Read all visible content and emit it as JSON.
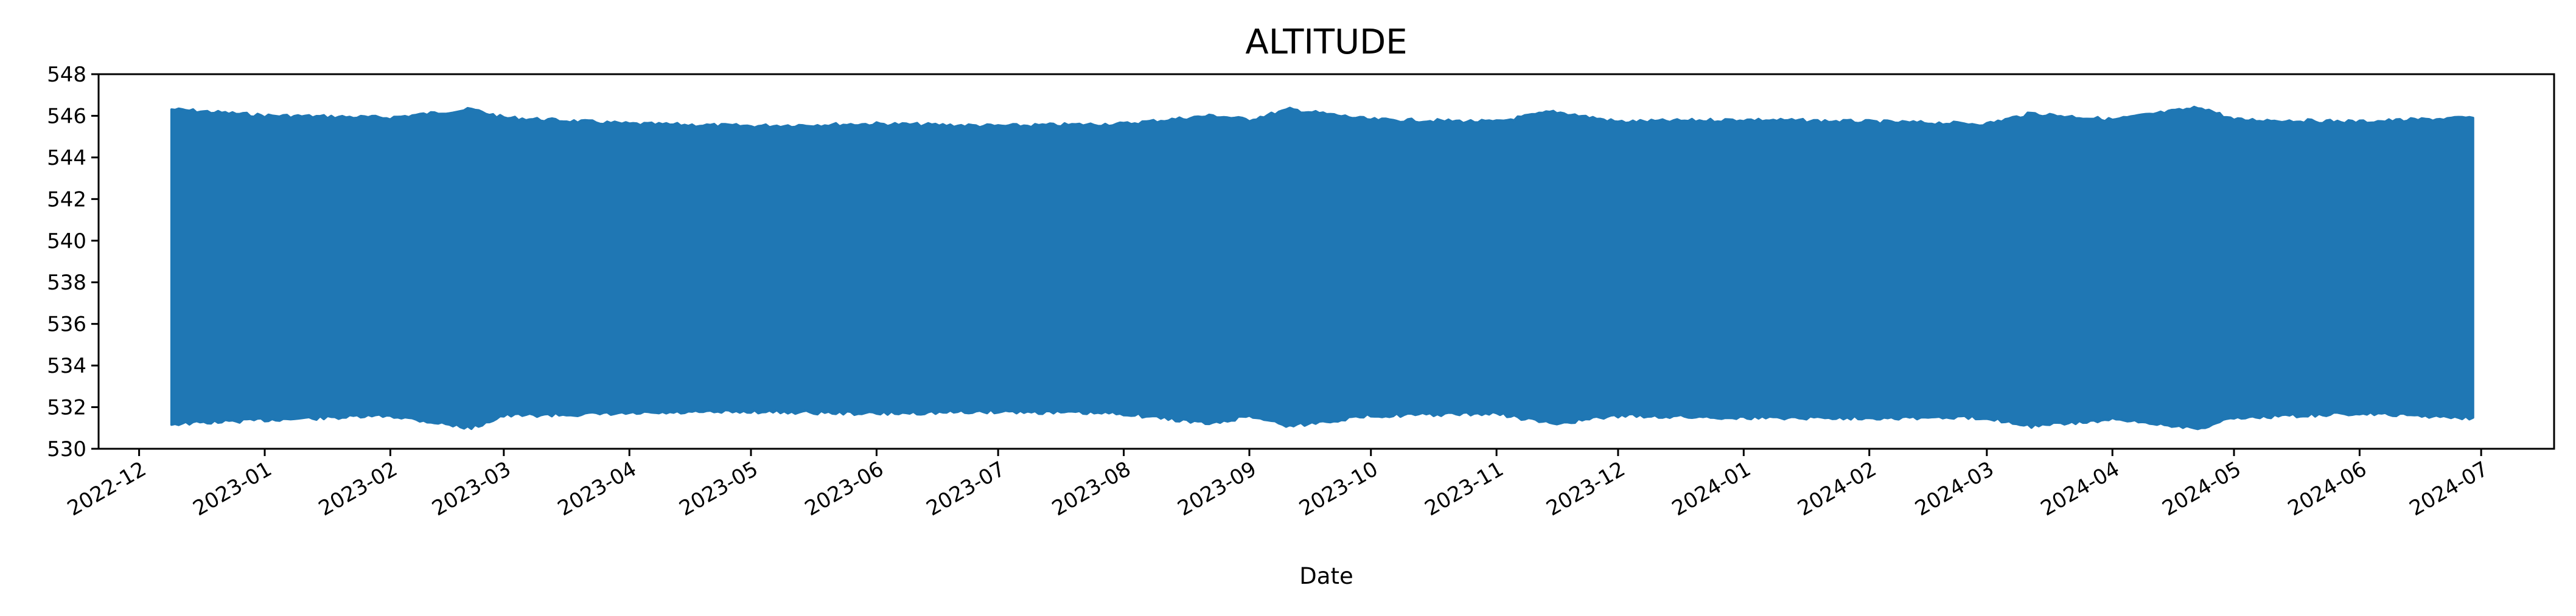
{
  "chart_data": {
    "type": "area",
    "title": "ALTITUDE",
    "xlabel": "Date",
    "ylabel": "",
    "ylim": [
      530,
      548
    ],
    "xlim": [
      "2022-11-21",
      "2024-07-19"
    ],
    "yticks": [
      530,
      532,
      534,
      536,
      538,
      540,
      542,
      544,
      546,
      548
    ],
    "xticks": [
      "2022-12",
      "2023-01",
      "2023-02",
      "2023-03",
      "2023-04",
      "2023-05",
      "2023-06",
      "2023-07",
      "2023-08",
      "2023-09",
      "2023-10",
      "2023-11",
      "2023-12",
      "2024-01",
      "2024-02",
      "2024-03",
      "2024-04",
      "2024-05",
      "2024-06",
      "2024-07"
    ],
    "grid": false,
    "series": [
      {
        "color": "#1f77b4",
        "x": [
          "2022-12-09",
          "2023-01-01",
          "2023-02-01",
          "2023-02-21",
          "2023-03-01",
          "2023-04-01",
          "2023-05-01",
          "2023-06-01",
          "2023-07-01",
          "2023-08-01",
          "2023-08-23",
          "2023-09-01",
          "2023-09-11",
          "2023-10-01",
          "2023-11-01",
          "2023-11-15",
          "2023-12-01",
          "2024-01-01",
          "2024-02-01",
          "2024-03-01",
          "2024-03-12",
          "2024-04-01",
          "2024-04-23",
          "2024-05-01",
          "2024-06-01",
          "2024-06-29"
        ],
        "upper": [
          546.3,
          546.0,
          545.9,
          546.3,
          545.9,
          545.6,
          545.5,
          545.6,
          545.5,
          545.6,
          546.0,
          545.8,
          546.3,
          545.8,
          545.7,
          546.2,
          545.7,
          545.8,
          545.7,
          545.6,
          546.1,
          545.8,
          546.4,
          545.8,
          545.7,
          545.9
        ],
        "lower": [
          531.2,
          531.4,
          531.6,
          531.0,
          531.6,
          531.7,
          531.8,
          531.7,
          531.8,
          531.7,
          531.2,
          531.6,
          531.1,
          531.6,
          531.7,
          531.2,
          531.6,
          531.5,
          531.5,
          531.5,
          531.1,
          531.4,
          531.0,
          531.5,
          531.7,
          531.5
        ]
      }
    ]
  }
}
